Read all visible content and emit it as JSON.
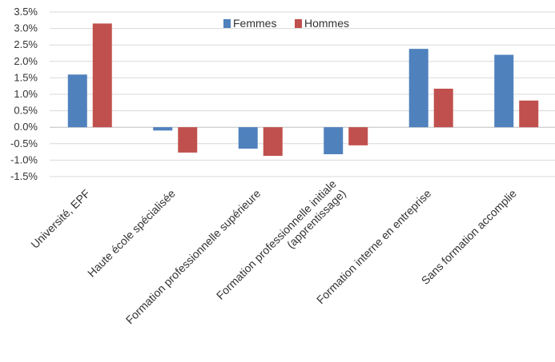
{
  "chart_data": {
    "type": "bar",
    "categories": [
      [
        "Université, EPF"
      ],
      [
        "Haute école spécialisée"
      ],
      [
        "Formation professionnelle supérieure"
      ],
      [
        "Formation professionnelle initiale",
        "(apprentissage)"
      ],
      [
        "Formation interne en entreprise"
      ],
      [
        "Sans formation accomplie"
      ]
    ],
    "series": [
      {
        "name": "Femmes",
        "color": "#4F81BD",
        "values": [
          1.6,
          -0.1,
          -0.65,
          -0.82,
          2.38,
          2.2
        ]
      },
      {
        "name": "Hommes",
        "color": "#C0504D",
        "values": [
          3.15,
          -0.77,
          -0.87,
          -0.55,
          1.17,
          0.81
        ]
      }
    ],
    "y_ticks": [
      "3.5%",
      "3.0%",
      "2.5%",
      "2.0%",
      "1.5%",
      "1.0%",
      "0.5%",
      "0.0%",
      "-0.5%",
      "-1.0%",
      "-1.5%"
    ],
    "ylim": [
      -1.5,
      3.5
    ],
    "y_unit": "%",
    "grid": true,
    "legend_position": "top-center",
    "title": "",
    "xlabel": "",
    "ylabel": ""
  }
}
